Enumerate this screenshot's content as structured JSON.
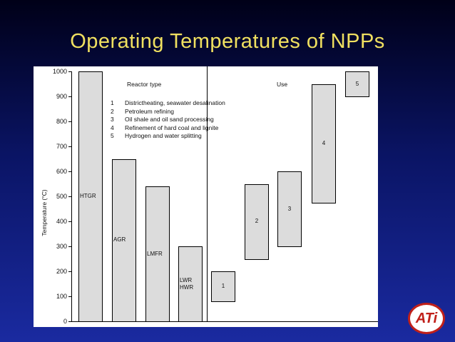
{
  "title": "Operating Temperatures of NPPs",
  "chart_data": {
    "type": "range-bar",
    "ylabel": "Temperature (°C)",
    "group_labels": [
      "Reactor type",
      "Use"
    ],
    "legend_items": [
      {
        "key": "1",
        "text": "Districtheating, seawater desalination"
      },
      {
        "key": "2",
        "text": "Petroleum refining"
      },
      {
        "key": "3",
        "text": "Oil shale and oil sand processing"
      },
      {
        "key": "4",
        "text": "Refinement of hard coal and lignite"
      },
      {
        "key": "5",
        "text": "Hydrogen and water splitting"
      }
    ],
    "categories": [
      "HTGR",
      "AGR",
      "LMFR",
      "LWR\nHWR",
      "1",
      "2",
      "3",
      "4",
      "5"
    ],
    "low": [
      0,
      0,
      0,
      0,
      80,
      250,
      300,
      475,
      900
    ],
    "high": [
      1000,
      650,
      540,
      300,
      200,
      550,
      600,
      950,
      1000
    ],
    "color": "#dcdcdc",
    "ylim": [
      0,
      1000
    ],
    "yticks": [
      0,
      100,
      200,
      300,
      400,
      500,
      600,
      700,
      800,
      900,
      1000
    ]
  },
  "logo": "ATi"
}
